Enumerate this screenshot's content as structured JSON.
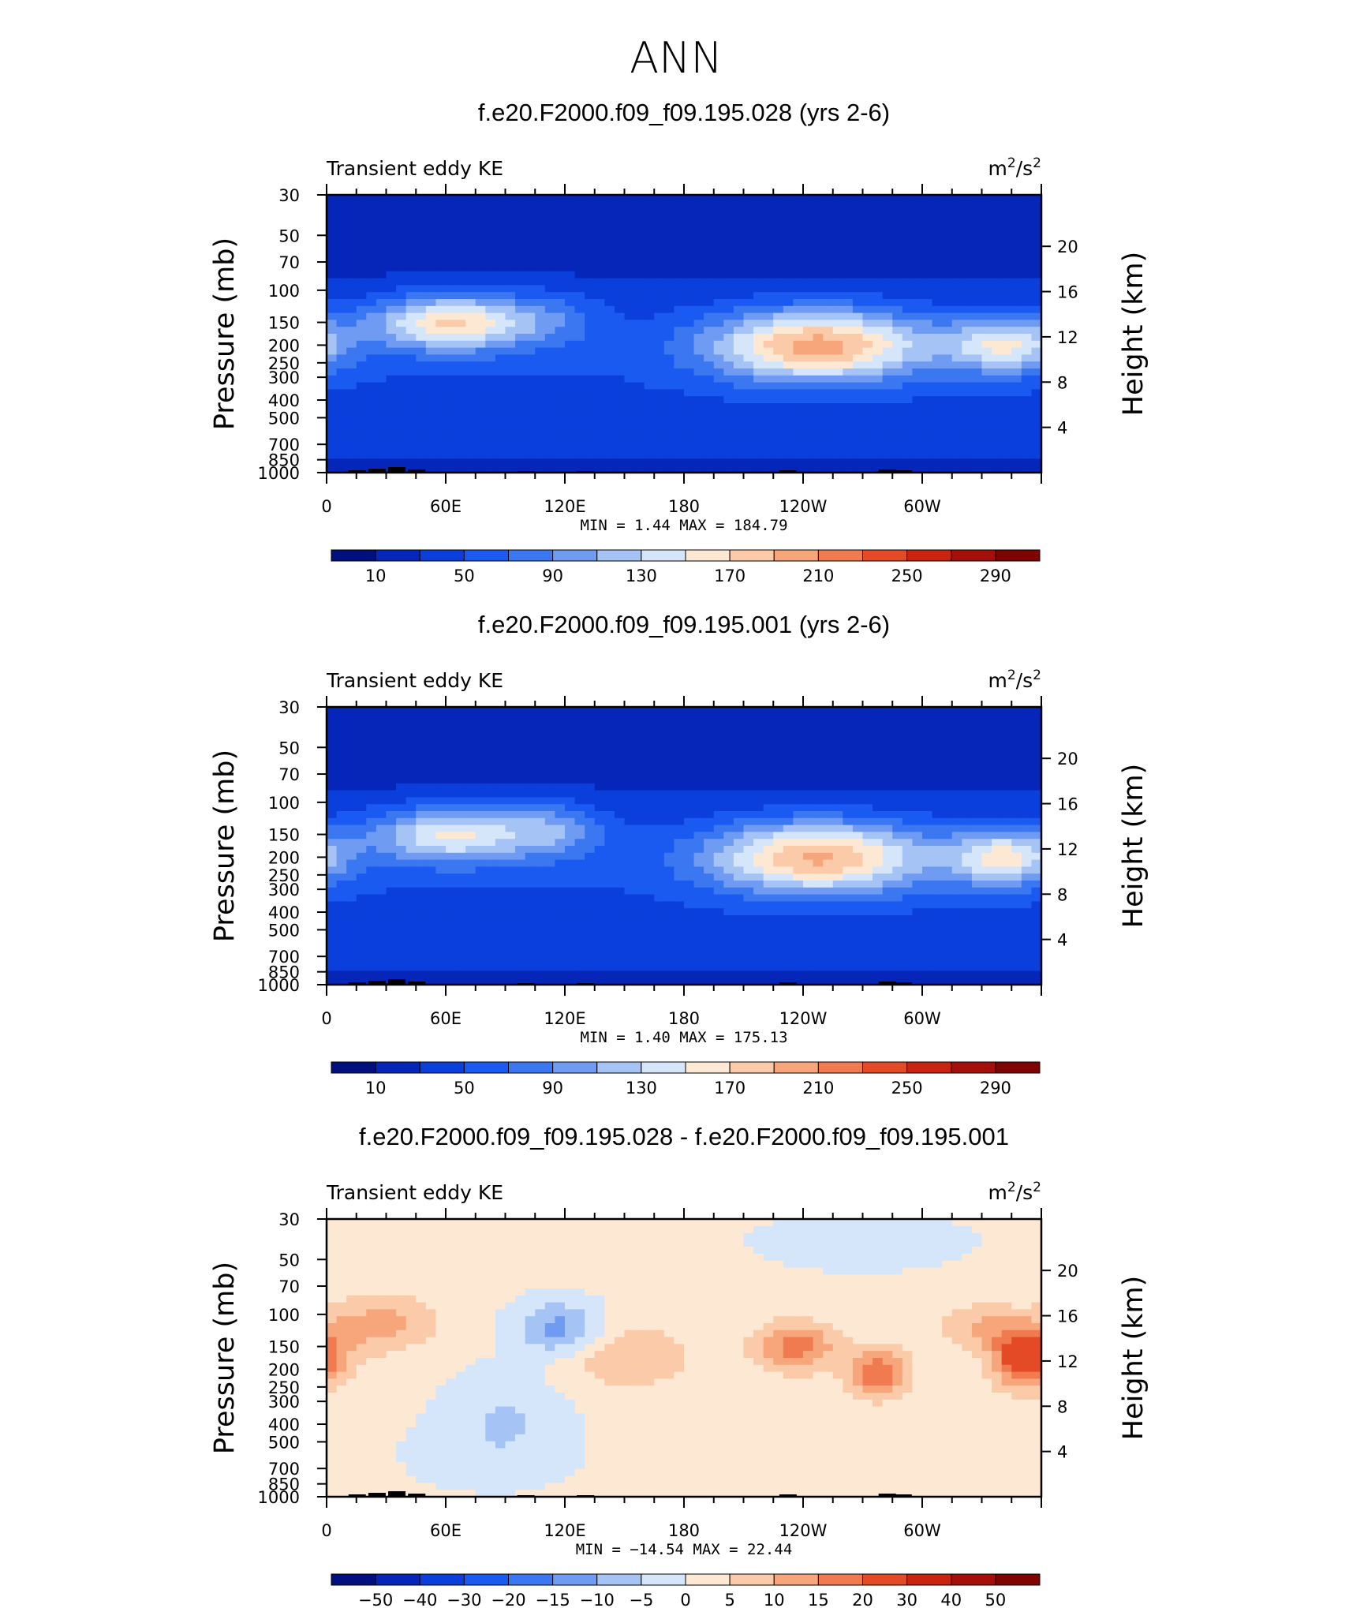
{
  "main_title": "ANN",
  "colors": {
    "abs_scale": [
      "#00107f",
      "#0526b8",
      "#0b3fdc",
      "#1b5af0",
      "#3b77f0",
      "#6f9cf2",
      "#a5c3f5",
      "#d5e6fb",
      "#fde8d4",
      "#fbcaa8",
      "#f6a67a",
      "#f07b50",
      "#e54a26",
      "#c92410",
      "#a50f0a",
      "#7d0400"
    ],
    "diff_scale": [
      "#00107f",
      "#0526b8",
      "#0b3fdc",
      "#1b5af0",
      "#3b77f0",
      "#6f9cf2",
      "#a5c3f5",
      "#d5e6fb",
      "#fde8d4",
      "#fbcaa8",
      "#f6a67a",
      "#f07b50",
      "#e54a26",
      "#c92410",
      "#a50f0a",
      "#7d0400"
    ]
  },
  "panels": [
    {
      "title": "f.e20.F2000.f09_f09.195.028 (yrs 2-6)",
      "left_label": "Transient eddy KE",
      "unit_base": "m",
      "unit_exp1": "2",
      "unit_mid": "/s",
      "unit_exp2": "2",
      "y_title": "Pressure (mb)",
      "y2_title": "Height (km)",
      "minmax": "MIN =    1.44   MAX = 184.79",
      "colorbar_labels": [
        "10",
        "50",
        "90",
        "130",
        "170",
        "210",
        "250",
        "290"
      ]
    },
    {
      "title": "f.e20.F2000.f09_f09.195.001 (yrs 2-6)",
      "left_label": "Transient eddy KE",
      "unit_base": "m",
      "unit_exp1": "2",
      "unit_mid": "/s",
      "unit_exp2": "2",
      "y_title": "Pressure (mb)",
      "y2_title": "Height (km)",
      "minmax": "MIN =    1.40   MAX = 175.13",
      "colorbar_labels": [
        "10",
        "50",
        "90",
        "130",
        "170",
        "210",
        "250",
        "290"
      ]
    },
    {
      "title": "f.e20.F2000.f09_f09.195.028 - f.e20.F2000.f09_f09.195.001",
      "left_label": "Transient eddy KE",
      "unit_base": "m",
      "unit_exp1": "2",
      "unit_mid": "/s",
      "unit_exp2": "2",
      "y_title": "Pressure (mb)",
      "y2_title": "Height (km)",
      "minmax": "MIN = −14.54   MAX =  22.44",
      "colorbar_labels": [
        "−50",
        "−40",
        "−30",
        "−20",
        "−15",
        "−10",
        "−5",
        "0",
        "5",
        "10",
        "15",
        "20",
        "30",
        "40",
        "50"
      ]
    }
  ],
  "chart_data": [
    {
      "type": "heatmap",
      "title": "f.e20.F2000.f09_f09.195.028 (yrs 2-6)",
      "variable": "Transient eddy KE",
      "units": "m2/s2",
      "x_tick_labels": [
        "0",
        "60E",
        "120E",
        "180",
        "120W",
        "60W"
      ],
      "x_range_deg_east": [
        0,
        360
      ],
      "y_tick_labels": [
        "30",
        "50",
        "70",
        "100",
        "150",
        "200",
        "250",
        "300",
        "400",
        "500",
        "700",
        "850",
        "1000"
      ],
      "y_range_mb": [
        1000,
        30
      ],
      "y_log_scale": true,
      "y2_tick_labels": [
        "20",
        "16",
        "12",
        "8",
        "4"
      ],
      "levels": [
        10,
        30,
        50,
        70,
        90,
        110,
        130,
        150,
        170,
        190,
        210,
        230,
        250,
        270,
        290
      ],
      "min": 1.44,
      "max": 184.79,
      "maxima": [
        {
          "lon": 63,
          "p_mb": 150,
          "value": 160
        },
        {
          "lon": 248,
          "p_mb": 200,
          "value": 180
        },
        {
          "lon": 342,
          "p_mb": 200,
          "value": 135
        }
      ]
    },
    {
      "type": "heatmap",
      "title": "f.e20.F2000.f09_f09.195.001 (yrs 2-6)",
      "variable": "Transient eddy KE",
      "units": "m2/s2",
      "x_tick_labels": [
        "0",
        "60E",
        "120E",
        "180",
        "120W",
        "60W"
      ],
      "x_range_deg_east": [
        0,
        360
      ],
      "y_tick_labels": [
        "30",
        "50",
        "70",
        "100",
        "150",
        "200",
        "250",
        "300",
        "400",
        "500",
        "700",
        "850",
        "1000"
      ],
      "y_range_mb": [
        1000,
        30
      ],
      "y_log_scale": true,
      "y2_tick_labels": [
        "20",
        "16",
        "12",
        "8",
        "4"
      ],
      "levels": [
        10,
        30,
        50,
        70,
        90,
        110,
        130,
        150,
        170,
        190,
        210,
        230,
        250,
        270,
        290
      ],
      "min": 1.4,
      "max": 175.13,
      "maxima": [
        {
          "lon": 62,
          "p_mb": 150,
          "value": 140
        },
        {
          "lon": 247,
          "p_mb": 200,
          "value": 175
        },
        {
          "lon": 337,
          "p_mb": 200,
          "value": 140
        }
      ]
    },
    {
      "type": "heatmap",
      "title": "f.e20.F2000.f09_f09.195.028 - f.e20.F2000.f09_f09.195.001",
      "variable": "Transient eddy KE",
      "units": "m2/s2",
      "x_tick_labels": [
        "0",
        "60E",
        "120E",
        "180",
        "120W",
        "60W"
      ],
      "x_range_deg_east": [
        0,
        360
      ],
      "y_tick_labels": [
        "30",
        "50",
        "70",
        "100",
        "150",
        "200",
        "250",
        "300",
        "400",
        "500",
        "700",
        "850",
        "1000"
      ],
      "y_range_mb": [
        1000,
        30
      ],
      "y_log_scale": true,
      "y2_tick_labels": [
        "20",
        "16",
        "12",
        "8",
        "4"
      ],
      "levels": [
        -50,
        -40,
        -30,
        -20,
        -15,
        -10,
        -5,
        0,
        5,
        10,
        15,
        20,
        30,
        40,
        50
      ],
      "min": -14.54,
      "max": 22.44,
      "extrema": [
        {
          "lon": 118,
          "p_mb": 110,
          "value": -12
        },
        {
          "lon": 237,
          "p_mb": 150,
          "value": 17
        },
        {
          "lon": 278,
          "p_mb": 200,
          "value": 20
        },
        {
          "lon": 350,
          "p_mb": 170,
          "value": 22
        }
      ]
    }
  ]
}
